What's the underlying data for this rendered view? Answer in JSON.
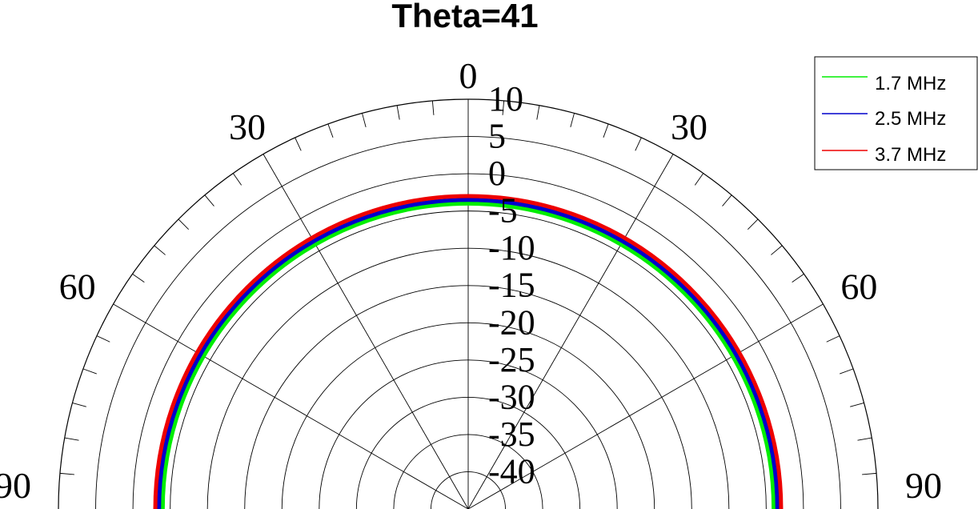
{
  "chart_data": {
    "type": "line",
    "subtype": "polar",
    "title": "Theta=41",
    "angle_ticks": {
      "0": "0",
      "30": "30",
      "-30": "30",
      "60": "60",
      "-60": "60",
      "90": "90",
      "-90": "90"
    },
    "radial_ticks": [
      "10",
      "5",
      "0",
      "-5",
      "-10",
      "-15",
      "-20",
      "-25",
      "-30",
      "-35",
      "-40"
    ],
    "rlim": [
      -45,
      10
    ],
    "angle_range_deg": [
      -90,
      90
    ],
    "grid": true,
    "legend_position": "top-right",
    "series": [
      {
        "name": "1.7 MHz",
        "color": "#00ee00",
        "value_db": -4.0
      },
      {
        "name": "2.5 MHz",
        "color": "#0000cc",
        "value_db": -3.5
      },
      {
        "name": "3.7 MHz",
        "color": "#ee0000",
        "value_db": -3.0
      }
    ]
  }
}
